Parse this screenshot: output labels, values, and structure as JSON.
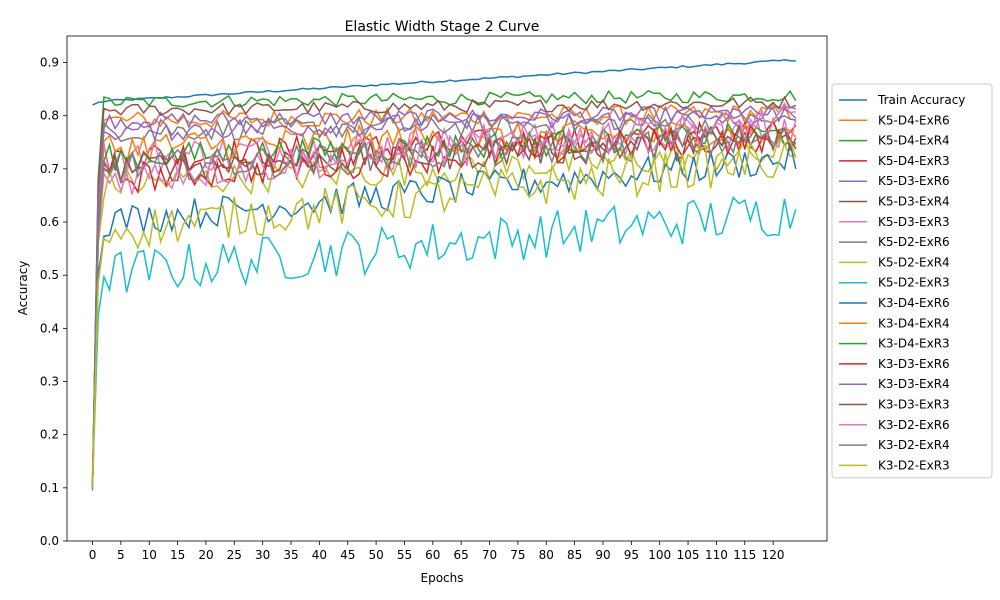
{
  "chart_data": {
    "type": "line",
    "title": "Elastic Width Stage 2 Curve",
    "xlabel": "Epochs",
    "ylabel": "Accuracy",
    "xlim": [
      -4.5,
      129.5
    ],
    "ylim": [
      0.0,
      0.95
    ],
    "xticks": [
      0,
      5,
      10,
      15,
      20,
      25,
      30,
      35,
      40,
      45,
      50,
      55,
      60,
      65,
      70,
      75,
      80,
      85,
      90,
      95,
      100,
      105,
      110,
      115,
      120
    ],
    "yticks": [
      0.0,
      0.1,
      0.2,
      0.3,
      0.4,
      0.5,
      0.6,
      0.7,
      0.8,
      0.9
    ],
    "grid": false,
    "legend_position": "outside-right",
    "epochs": 125,
    "series": [
      {
        "name": "Train Accuracy",
        "color": "#1f77b4",
        "start": 0.82,
        "base": 0.826,
        "end": 0.905,
        "noise": 0.002
      },
      {
        "name": "K5-D4-ExR6",
        "color": "#ff7f0e",
        "start": 0.1,
        "base": 0.79,
        "end": 0.805,
        "noise": 0.018
      },
      {
        "name": "K5-D4-ExR4",
        "color": "#2ca02c",
        "start": 0.11,
        "base": 0.825,
        "end": 0.838,
        "noise": 0.012
      },
      {
        "name": "K5-D4-ExR3",
        "color": "#d62728",
        "start": 0.1,
        "base": 0.72,
        "end": 0.765,
        "noise": 0.03
      },
      {
        "name": "K5-D3-ExR6",
        "color": "#9467bd",
        "start": 0.095,
        "base": 0.79,
        "end": 0.805,
        "noise": 0.015
      },
      {
        "name": "K5-D3-ExR4",
        "color": "#8c564b",
        "start": 0.1,
        "base": 0.81,
        "end": 0.825,
        "noise": 0.012
      },
      {
        "name": "K5-D3-ExR3",
        "color": "#e377c2",
        "start": 0.1,
        "base": 0.72,
        "end": 0.775,
        "noise": 0.035
      },
      {
        "name": "K5-D2-ExR6",
        "color": "#7f7f7f",
        "start": 0.1,
        "base": 0.77,
        "end": 0.79,
        "noise": 0.02
      },
      {
        "name": "K5-D2-ExR4",
        "color": "#bcbd22",
        "start": 0.12,
        "base": 0.67,
        "end": 0.73,
        "noise": 0.03
      },
      {
        "name": "K5-D2-ExR3",
        "color": "#17becf",
        "start": 0.11,
        "base": 0.5,
        "end": 0.62,
        "noise": 0.045
      },
      {
        "name": "K3-D4-ExR6",
        "color": "#1f77b4",
        "start": 0.1,
        "base": 0.6,
        "end": 0.72,
        "noise": 0.03
      },
      {
        "name": "K3-D4-ExR4",
        "color": "#ff7f0e",
        "start": 0.1,
        "base": 0.74,
        "end": 0.77,
        "noise": 0.03
      },
      {
        "name": "K3-D4-ExR3",
        "color": "#2ca02c",
        "start": 0.1,
        "base": 0.72,
        "end": 0.765,
        "noise": 0.025
      },
      {
        "name": "K3-D3-ExR6",
        "color": "#d62728",
        "start": 0.1,
        "base": 0.68,
        "end": 0.765,
        "noise": 0.03
      },
      {
        "name": "K3-D3-ExR4",
        "color": "#9467bd",
        "start": 0.1,
        "base": 0.77,
        "end": 0.8,
        "noise": 0.02
      },
      {
        "name": "K3-D3-ExR3",
        "color": "#8c564b",
        "start": 0.1,
        "base": 0.7,
        "end": 0.755,
        "noise": 0.03
      },
      {
        "name": "K3-D2-ExR6",
        "color": "#e377c2",
        "start": 0.1,
        "base": 0.68,
        "end": 0.79,
        "noise": 0.035
      },
      {
        "name": "K3-D2-ExR4",
        "color": "#7f7f7f",
        "start": 0.1,
        "base": 0.7,
        "end": 0.755,
        "noise": 0.03
      },
      {
        "name": "K3-D2-ExR3",
        "color": "#bcbd22",
        "start": 0.1,
        "base": 0.58,
        "end": 0.72,
        "noise": 0.04
      }
    ]
  }
}
